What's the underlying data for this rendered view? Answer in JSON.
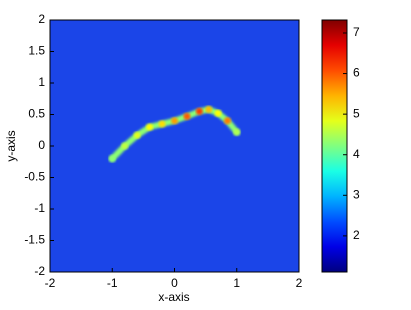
{
  "chart_data": {
    "type": "heatmap",
    "xlabel": "x-axis",
    "ylabel": "y-axis",
    "xlim": [
      -2,
      2
    ],
    "xticks": [
      -2,
      -1,
      0,
      1,
      2
    ],
    "ylim": [
      -2,
      2
    ],
    "yticks": [
      -2,
      -1.5,
      -1,
      -0.5,
      0,
      0.5,
      1,
      1.5,
      2
    ],
    "clim": [
      1.11,
      7.32
    ],
    "cticks": [
      2,
      3,
      4,
      5,
      6,
      7
    ],
    "colormap": "jet",
    "series": [
      {
        "x": [
          -1,
          -0.8,
          -0.6,
          -0.4,
          -0.2,
          0,
          0.2,
          0.4,
          0.55,
          0.7,
          0.85,
          1
        ],
        "y": [
          -0.2,
          0,
          0.17,
          0.3,
          0.35,
          0.4,
          0.47,
          0.55,
          0.58,
          0.52,
          0.4,
          0.22
        ],
        "values": [
          4.3,
          4.6,
          4.8,
          5,
          5.2,
          5.6,
          6,
          6.2,
          5.4,
          5,
          5.8,
          4.5
        ]
      }
    ]
  }
}
